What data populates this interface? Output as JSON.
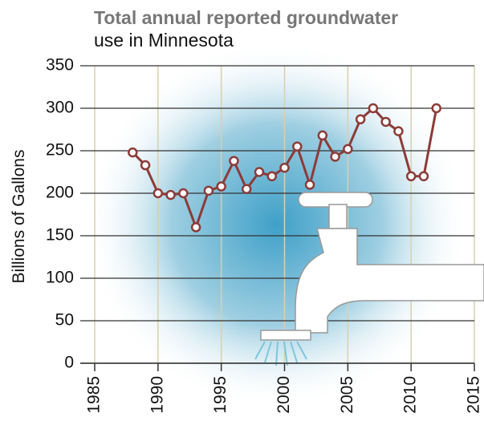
{
  "chart_data": {
    "type": "line",
    "title": "Total annual reported groundwater",
    "subtitle": "use in Minnesota",
    "y_label": "Billions of Gallons",
    "x": [
      1988,
      1989,
      1990,
      1991,
      1992,
      1993,
      1994,
      1995,
      1996,
      1997,
      1998,
      1999,
      2000,
      2001,
      2002,
      2003,
      2004,
      2005,
      2006,
      2007,
      2008,
      2009,
      2010,
      2011,
      2012
    ],
    "values": [
      248,
      233,
      200,
      198,
      200,
      160,
      203,
      208,
      238,
      205,
      225,
      220,
      230,
      255,
      210,
      268,
      243,
      252,
      287,
      300,
      284,
      273,
      220,
      220,
      300
    ],
    "color": "#8c3b38",
    "xlim": [
      1985,
      2015
    ],
    "xticks": [
      1985,
      1990,
      1995,
      2000,
      2005,
      2010,
      2015
    ],
    "ylim": [
      0,
      350
    ],
    "yticks": [
      0,
      50,
      100,
      150,
      200,
      250,
      300,
      350
    ],
    "grid": true
  }
}
